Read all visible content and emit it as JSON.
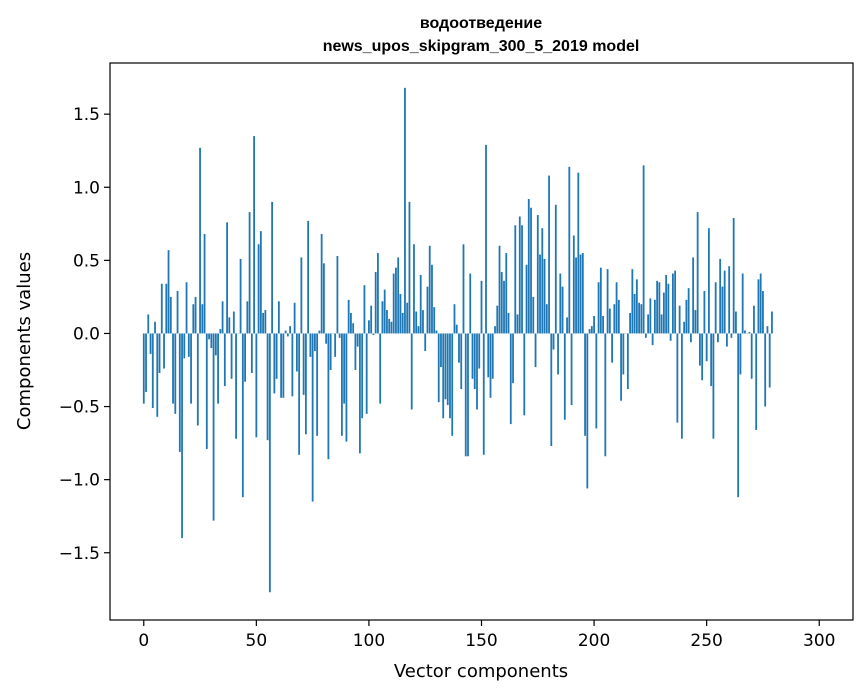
{
  "chart_data": {
    "type": "bar",
    "title": "водоотведение",
    "subtitle": "news_upos_skipgram_300_5_2019 model",
    "xlabel": "Vector components",
    "ylabel": "Components values",
    "xlim": [
      -15,
      315
    ],
    "ylim": [
      -1.96,
      1.85
    ],
    "xticks": [
      0,
      50,
      100,
      150,
      200,
      250,
      300
    ],
    "yticks": [
      -1.5,
      -1.0,
      -0.5,
      0.0,
      0.5,
      1.0,
      1.5
    ],
    "ytick_labels": [
      "−1.5",
      "−1.0",
      "−0.5",
      "0.0",
      "0.5",
      "1.0",
      "1.5"
    ],
    "grid": false,
    "bar_color": "#1f77b4",
    "values": [
      -0.48,
      -0.4,
      0.13,
      -0.14,
      -0.51,
      0.08,
      -0.57,
      -0.27,
      0.34,
      -0.24,
      0.34,
      0.57,
      0.25,
      -0.48,
      -0.55,
      0.29,
      -0.81,
      -1.4,
      -0.17,
      0.35,
      -0.16,
      -0.48,
      0.2,
      0.25,
      -0.63,
      1.27,
      0.2,
      0.68,
      -0.79,
      -0.04,
      -0.1,
      -1.28,
      -0.15,
      -0.48,
      0.03,
      0.22,
      -0.36,
      0.76,
      0.11,
      -0.31,
      0.15,
      -0.72,
      0.0,
      0.51,
      -1.12,
      -0.33,
      0.22,
      0.83,
      -0.27,
      1.35,
      -0.71,
      0.61,
      0.7,
      0.14,
      0.16,
      -0.73,
      -1.77,
      0.9,
      -0.41,
      -0.31,
      0.22,
      -0.44,
      -0.44,
      0.02,
      -0.02,
      0.05,
      -0.43,
      0.21,
      -0.26,
      -0.83,
      0.52,
      -0.42,
      -0.69,
      0.77,
      -0.16,
      -1.15,
      -0.12,
      -0.7,
      0.02,
      0.68,
      0.48,
      -0.07,
      -0.86,
      -0.25,
      0.0,
      -0.16,
      0.53,
      -0.03,
      -0.7,
      -0.48,
      -0.74,
      0.23,
      0.14,
      0.07,
      -0.25,
      -0.09,
      -0.82,
      -0.58,
      0.33,
      -0.55,
      0.09,
      0.19,
      -0.01,
      0.42,
      0.55,
      -0.48,
      0.22,
      0.3,
      0.16,
      0.1,
      0.08,
      0.41,
      0.45,
      0.52,
      0.27,
      0.14,
      1.68,
      0.21,
      0.9,
      -0.52,
      0.61,
      0.15,
      0.05,
      0.4,
      0.16,
      -0.12,
      0.32,
      0.6,
      0.47,
      0.18,
      0.02,
      -0.47,
      -0.23,
      -0.58,
      -0.45,
      -0.49,
      -0.58,
      -0.7,
      0.2,
      0.06,
      -0.2,
      -0.38,
      0.61,
      -0.84,
      -0.84,
      0.41,
      -0.31,
      -0.38,
      -0.52,
      -0.24,
      0.36,
      -0.83,
      1.29,
      -0.3,
      -0.44,
      -0.31,
      0.05,
      0.19,
      0.6,
      0.42,
      0.36,
      0.55,
      0.14,
      -0.62,
      -0.34,
      0.74,
      0.13,
      0.8,
      0.74,
      -0.56,
      0.47,
      0.92,
      0.86,
      0.25,
      -0.23,
      0.81,
      0.54,
      0.72,
      0.51,
      0.2,
      1.08,
      -0.77,
      -0.11,
      0.88,
      -0.28,
      0.41,
      0.32,
      -0.59,
      0.11,
      1.14,
      -0.49,
      0.67,
      0.52,
      1.1,
      0.54,
      0.55,
      -0.7,
      -1.06,
      0.03,
      0.05,
      0.12,
      -0.65,
      0.35,
      0.45,
      0.12,
      -0.84,
      0.44,
      0.17,
      -0.2,
      0.2,
      0.35,
      0.23,
      -0.46,
      -0.28,
      0.0,
      -0.38,
      0.14,
      0.44,
      0.27,
      0.37,
      0.21,
      0.2,
      1.15,
      -0.03,
      0.13,
      0.24,
      -0.08,
      0.23,
      0.36,
      0.35,
      0.13,
      0.28,
      0.4,
      0.34,
      -0.05,
      0.41,
      0.43,
      -0.61,
      0.19,
      -0.72,
      0.08,
      0.23,
      0.31,
      -0.06,
      0.52,
      0.16,
      0.83,
      -0.22,
      -0.32,
      0.29,
      -0.19,
      0.72,
      -0.36,
      -0.72,
      0.35,
      -0.06,
      0.51,
      0.32,
      0.43,
      -0.09,
      0.46,
      -0.03,
      0.79,
      0.15,
      -1.12,
      -0.28,
      0.41,
      0.02,
      0.0,
      0.01,
      -0.31,
      0.19,
      -0.66,
      0.37,
      0.41,
      0.29,
      -0.5,
      0.05,
      -0.37,
      0.15
    ]
  }
}
